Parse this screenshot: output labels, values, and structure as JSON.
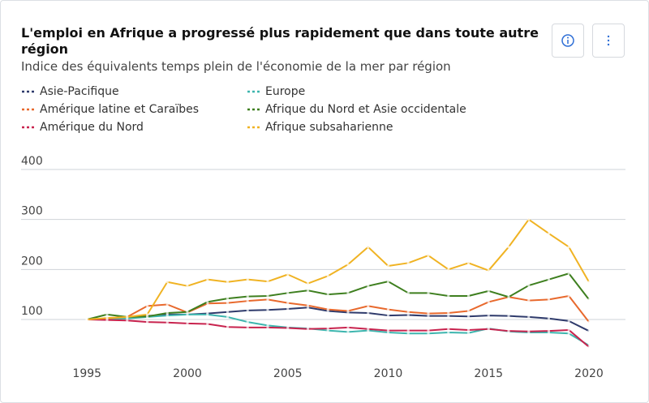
{
  "chart_data": {
    "type": "line",
    "title": "L'emploi en Afrique a progressé plus rapidement que dans toute autre région",
    "subtitle": "Indice des équivalents temps plein de l'économie de la mer par région",
    "x": [
      1995,
      1996,
      1997,
      1998,
      1999,
      2000,
      2001,
      2002,
      2003,
      2004,
      2005,
      2006,
      2007,
      2008,
      2009,
      2010,
      2011,
      2012,
      2013,
      2014,
      2015,
      2016,
      2017,
      2018,
      2019,
      2020
    ],
    "series": [
      {
        "name": "Asie-Pacifique",
        "color": "#2e3a6b",
        "values": [
          100,
          102,
          105,
          107,
          110,
          110,
          112,
          115,
          118,
          119,
          121,
          124,
          117,
          114,
          113,
          108,
          109,
          107,
          107,
          106,
          108,
          107,
          105,
          102,
          97,
          77
        ]
      },
      {
        "name": "Europe",
        "color": "#3db5ae",
        "values": [
          100,
          101,
          102,
          105,
          108,
          110,
          110,
          105,
          95,
          88,
          84,
          82,
          78,
          75,
          78,
          74,
          72,
          72,
          74,
          73,
          82,
          76,
          74,
          74,
          72,
          48
        ]
      },
      {
        "name": "Amérique latine et Caraïbes",
        "color": "#e8692d",
        "values": [
          100,
          102,
          105,
          127,
          130,
          114,
          132,
          133,
          137,
          140,
          133,
          128,
          120,
          117,
          127,
          120,
          115,
          112,
          113,
          117,
          135,
          145,
          138,
          140,
          147,
          95
        ]
      },
      {
        "name": "Afrique du Nord et Asie occidentale",
        "color": "#3e7f1f",
        "values": [
          100,
          110,
          105,
          106,
          113,
          115,
          135,
          142,
          146,
          147,
          153,
          158,
          150,
          153,
          167,
          176,
          153,
          153,
          147,
          147,
          157,
          145,
          168,
          180,
          192,
          140
        ]
      },
      {
        "name": "Amérique du Nord",
        "color": "#c8234e",
        "values": [
          100,
          99,
          98,
          95,
          94,
          92,
          91,
          85,
          84,
          84,
          83,
          81,
          82,
          84,
          81,
          78,
          78,
          78,
          81,
          79,
          81,
          77,
          76,
          77,
          79,
          45
        ]
      },
      {
        "name": "Afrique subsaharienne",
        "color": "#f0b323",
        "values": [
          100,
          103,
          105,
          110,
          175,
          167,
          180,
          175,
          180,
          176,
          190,
          172,
          187,
          210,
          245,
          207,
          213,
          228,
          200,
          213,
          198,
          245,
          300,
          272,
          245,
          175
        ]
      }
    ],
    "xlim": [
      1992,
      2022
    ],
    "ylim": [
      40,
      400
    ],
    "xticks": [
      1995,
      2000,
      2005,
      2010,
      2015,
      2020
    ],
    "yticks": [
      100,
      200,
      300,
      400
    ],
    "grid": true
  }
}
